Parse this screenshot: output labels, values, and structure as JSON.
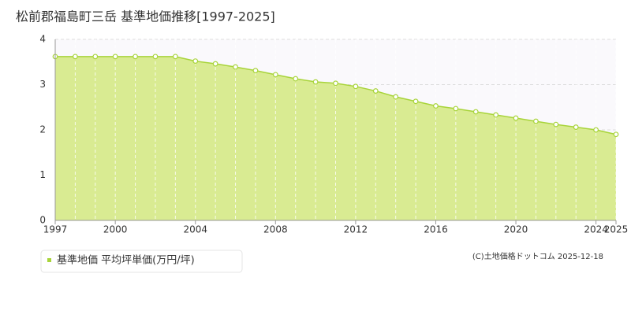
{
  "chart_data": {
    "type": "area",
    "title": "松前郡福島町三岳 基準地価推移[1997-2025]",
    "x": [
      1997,
      1998,
      1999,
      2000,
      2001,
      2002,
      2003,
      2004,
      2005,
      2006,
      2007,
      2008,
      2009,
      2010,
      2011,
      2012,
      2013,
      2014,
      2015,
      2016,
      2017,
      2018,
      2019,
      2020,
      2021,
      2022,
      2023,
      2024,
      2025
    ],
    "series": [
      {
        "name": "基準地価 平均坪単価(万円/坪)",
        "color": "#a8d43a",
        "values": [
          3.62,
          3.62,
          3.62,
          3.62,
          3.62,
          3.62,
          3.62,
          3.52,
          3.46,
          3.39,
          3.31,
          3.22,
          3.13,
          3.06,
          3.03,
          2.96,
          2.86,
          2.73,
          2.63,
          2.53,
          2.47,
          2.4,
          2.33,
          2.26,
          2.19,
          2.12,
          2.06,
          2.0,
          1.9
        ]
      }
    ],
    "xlim": [
      1997,
      2025
    ],
    "xticks": [
      1997,
      2000,
      2004,
      2008,
      2012,
      2016,
      2020,
      2024,
      2025
    ],
    "ylim": [
      0,
      4
    ],
    "yticks": [
      0,
      1,
      2,
      3,
      4
    ],
    "grid": true,
    "copyright": "(C)土地価格ドットコム 2025-12-18"
  }
}
